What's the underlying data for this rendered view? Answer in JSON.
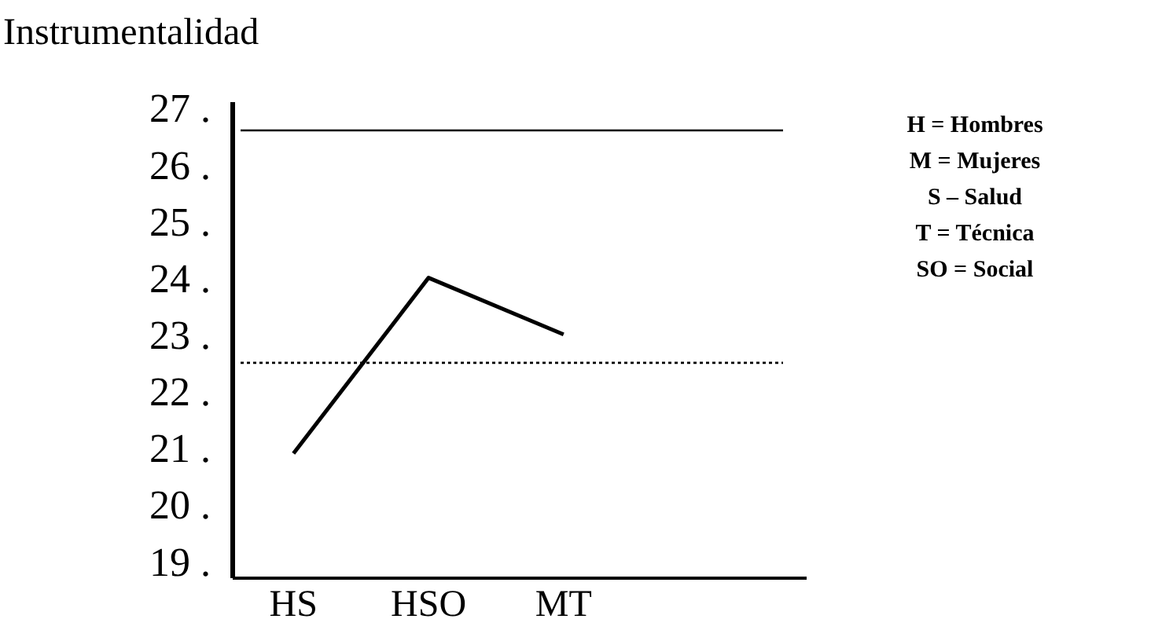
{
  "chart_data": {
    "type": "line",
    "title": "Instrumentalidad",
    "categories": [
      "HS",
      "HSO",
      "MT"
    ],
    "series": [
      {
        "color": "#000000",
        "values": [
          20.9,
          24.0,
          23.0
        ]
      }
    ],
    "ylim": [
      18.7,
      27.1
    ],
    "yticks": [
      {
        "value": 19,
        "label": "19 ."
      },
      {
        "value": 20,
        "label": "20 ."
      },
      {
        "value": 21,
        "label": "21 ."
      },
      {
        "value": 22,
        "label": "22 ."
      },
      {
        "value": 23,
        "label": "23 ."
      },
      {
        "value": 24,
        "label": "24 ."
      },
      {
        "value": 25,
        "label": "25 ."
      },
      {
        "value": 26,
        "label": "26 ."
      },
      {
        "value": 27,
        "label": "27 ."
      }
    ],
    "ref_lines": [
      {
        "axis": "y",
        "value": 26.6,
        "color": "#000000",
        "line_style": "solid"
      },
      {
        "axis": "y",
        "value": 22.5,
        "color": "#000000",
        "line_style": "dotted"
      }
    ],
    "annotations": [
      "H = Hombres",
      "M = Mujeres",
      "S – Salud",
      "T = Técnica",
      "SO = Social"
    ],
    "grid": false,
    "marker": "none",
    "line_style": "solid"
  }
}
